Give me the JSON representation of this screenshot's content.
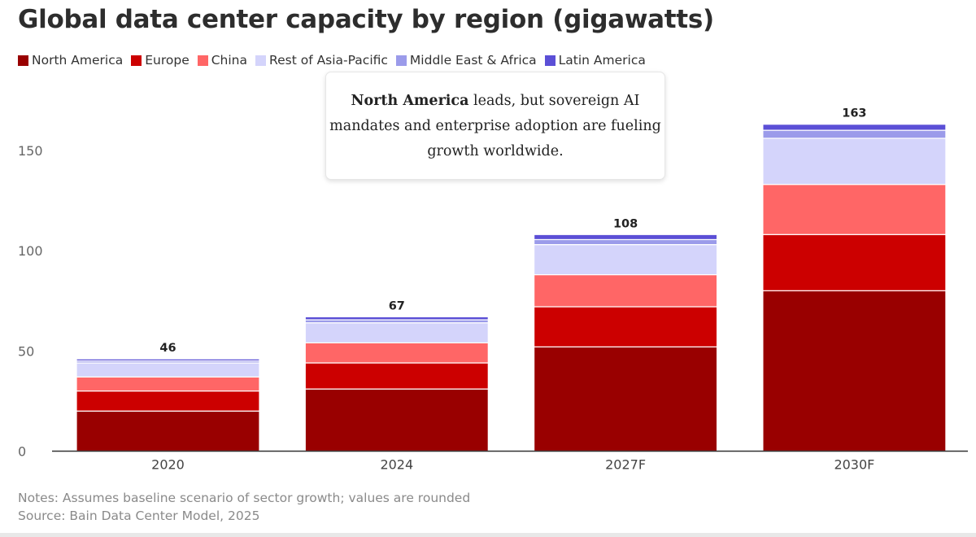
{
  "chart_data": {
    "type": "bar",
    "stacked": true,
    "title": "Global data center capacity by region (gigawatts)",
    "categories": [
      "2020",
      "2024",
      "2027F",
      "2030F"
    ],
    "series": [
      {
        "name": "North America",
        "color": "#990000",
        "values": [
          20,
          31,
          52,
          80
        ]
      },
      {
        "name": "Europe",
        "color": "#cc0000",
        "values": [
          10,
          13,
          20,
          28
        ]
      },
      {
        "name": "China",
        "color": "#ff6666",
        "values": [
          7,
          10,
          16,
          25
        ]
      },
      {
        "name": "Rest of Asia-Pacific",
        "color": "#d4d4fb",
        "values": [
          7,
          10,
          15,
          23
        ]
      },
      {
        "name": "Middle East & Africa",
        "color": "#9b9bea",
        "values": [
          1,
          1.5,
          2.5,
          4
        ]
      },
      {
        "name": "Latin America",
        "color": "#5b4fd6",
        "values": [
          1,
          1.5,
          2.5,
          3
        ]
      }
    ],
    "totals": [
      46,
      67,
      108,
      163
    ],
    "ylim": [
      0,
      175
    ],
    "yticks": [
      0,
      50,
      100,
      150
    ],
    "xlabel": "",
    "ylabel": "",
    "legend": "top-left",
    "grid": false
  },
  "callout": {
    "bold": "North America",
    "text": " leads, but sovereign AI mandates and enterprise adoption are fueling growth worldwide."
  },
  "notes": {
    "line1": "Notes: Assumes baseline scenario of sector growth; values are rounded",
    "line2": "Source: Bain Data Center Model, 2025"
  }
}
